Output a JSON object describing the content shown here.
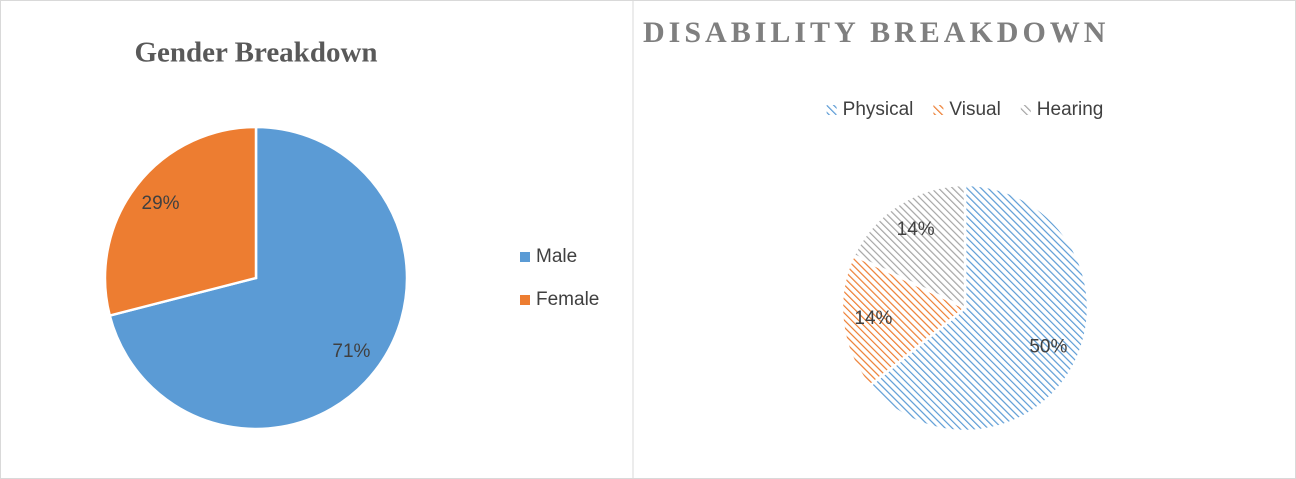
{
  "chart_data": [
    {
      "type": "pie",
      "title": "Gender Breakdown",
      "categories": [
        "Male",
        "Female"
      ],
      "values": [
        71,
        29
      ],
      "value_labels": [
        "71%",
        "29%"
      ],
      "colors": [
        "#5b9bd5",
        "#ed7d31"
      ],
      "legend": "right",
      "hatched": false
    },
    {
      "type": "pie",
      "title": "DISABILITY BREAKDOWN",
      "categories": [
        "Physical",
        "Visual",
        "Hearing"
      ],
      "values": [
        50,
        14,
        14
      ],
      "value_labels": [
        "50%",
        "14%",
        "14%"
      ],
      "colors": [
        "#5b9bd5",
        "#ed7d31",
        "#a5a5a5"
      ],
      "legend": "top",
      "hatched": true
    }
  ]
}
